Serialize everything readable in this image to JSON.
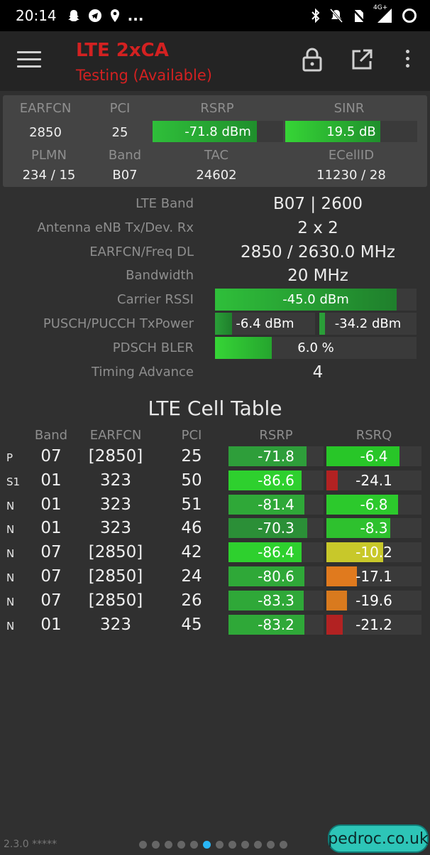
{
  "status_bar": {
    "time": "20:14",
    "left_icons": [
      "snapchat-icon",
      "telegram-icon",
      "location-icon",
      "more-notifications-icon"
    ],
    "overflow_text": "...",
    "right_icons": [
      "bluetooth-icon",
      "mute-icon",
      "no-sim-icon",
      "signal-icon",
      "battery-saver-icon"
    ],
    "network_type": "4G+"
  },
  "app_bar": {
    "title": "LTE 2xCA",
    "subtitle": "Testing (Available)",
    "title_color": "#d32121",
    "icons": [
      "menu-icon",
      "lock-icon",
      "open-external-icon",
      "more-vert-icon"
    ]
  },
  "summary": {
    "labels": {
      "earfcn": "EARFCN",
      "pci": "PCI",
      "rsrp": "RSRP",
      "sinr": "SINR",
      "plmn": "PLMN",
      "band": "Band",
      "tac": "TAC",
      "ecellid": "ECellID"
    },
    "values": {
      "earfcn": "2850",
      "pci": "25",
      "rsrp": "-71.8 dBm",
      "sinr": "19.5 dB",
      "plmn": "234 / 15",
      "band": "B07",
      "tac": "24602",
      "ecellid": "11230 / 28"
    },
    "rsrp_level": 0.8,
    "sinr_level": 0.72
  },
  "info": [
    {
      "label": "LTE Band",
      "value": "B07 | 2600"
    },
    {
      "label": "Antenna eNB Tx/Dev. Rx",
      "value": "2 x 2"
    },
    {
      "label": "EARFCN/Freq DL",
      "value": "2850 / 2630.0 MHz"
    },
    {
      "label": "Bandwidth",
      "value": "20 MHz"
    },
    {
      "label": "Carrier RSSI",
      "value": "-45.0 dBm",
      "level": 0.9
    },
    {
      "label": "PUSCH/PUCCH TxPower",
      "value": "-6.4 dBm",
      "value2": "-34.2 dBm",
      "level": 0.17,
      "level2": 0.06
    },
    {
      "label": "PDSCH BLER",
      "value": "6.0 %",
      "level": 0.28
    },
    {
      "label": "Timing Advance",
      "value": "4"
    }
  ],
  "cell_table": {
    "title": "LTE Cell Table",
    "headers": {
      "band": "Band",
      "earfcn": "EARFCN",
      "pci": "PCI",
      "rsrp": "RSRP",
      "rsrq": "RSRQ"
    },
    "rows": [
      {
        "type": "P",
        "band": "07",
        "earfcn": "[2850]",
        "pci": "25",
        "rsrp": "-71.8",
        "rsrp_level": 0.82,
        "rsrp_color": "#2e9e3a",
        "rsrq": "-6.4",
        "rsrq_level": 0.77,
        "rsrq_color": "#28c628"
      },
      {
        "type": "S1",
        "band": "01",
        "earfcn": "323",
        "pci": "50",
        "rsrp": "-86.6",
        "rsrp_level": 0.77,
        "rsrp_color": "#2ed02e",
        "rsrq": "-24.1",
        "rsrq_level": 0.12,
        "rsrq_color": "#b22222"
      },
      {
        "type": "N",
        "band": "01",
        "earfcn": "323",
        "pci": "51",
        "rsrp": "-81.4",
        "rsrp_level": 0.8,
        "rsrp_color": "#2fa838",
        "rsrq": "-6.8",
        "rsrq_level": 0.75,
        "rsrq_color": "#2cc92c"
      },
      {
        "type": "N",
        "band": "01",
        "earfcn": "323",
        "pci": "46",
        "rsrp": "-70.3",
        "rsrp_level": 0.83,
        "rsrp_color": "#2b8f37",
        "rsrq": "-8.3",
        "rsrq_level": 0.67,
        "rsrq_color": "#2ec12e"
      },
      {
        "type": "N",
        "band": "07",
        "earfcn": "[2850]",
        "pci": "42",
        "rsrp": "-86.4",
        "rsrp_level": 0.77,
        "rsrp_color": "#2ed02e",
        "rsrq": "-10.2",
        "rsrq_level": 0.6,
        "rsrq_color": "#c8c82a"
      },
      {
        "type": "N",
        "band": "07",
        "earfcn": "[2850]",
        "pci": "24",
        "rsrp": "-80.6",
        "rsrp_level": 0.8,
        "rsrp_color": "#2fa838",
        "rsrq": "-17.1",
        "rsrq_level": 0.32,
        "rsrq_color": "#e07a1e"
      },
      {
        "type": "N",
        "band": "07",
        "earfcn": "[2850]",
        "pci": "26",
        "rsrp": "-83.3",
        "rsrp_level": 0.79,
        "rsrp_color": "#2fa838",
        "rsrq": "-19.6",
        "rsrq_level": 0.22,
        "rsrq_color": "#d97a1e"
      },
      {
        "type": "N",
        "band": "01",
        "earfcn": "323",
        "pci": "45",
        "rsrp": "-83.2",
        "rsrp_level": 0.8,
        "rsrp_color": "#2fa838",
        "rsrq": "-21.2",
        "rsrq_level": 0.17,
        "rsrq_color": "#b22222"
      }
    ]
  },
  "footer": {
    "version": "2.3.0 *****",
    "page_count": 12,
    "active_page": 6,
    "watermark": "pedroc.co.uk"
  }
}
